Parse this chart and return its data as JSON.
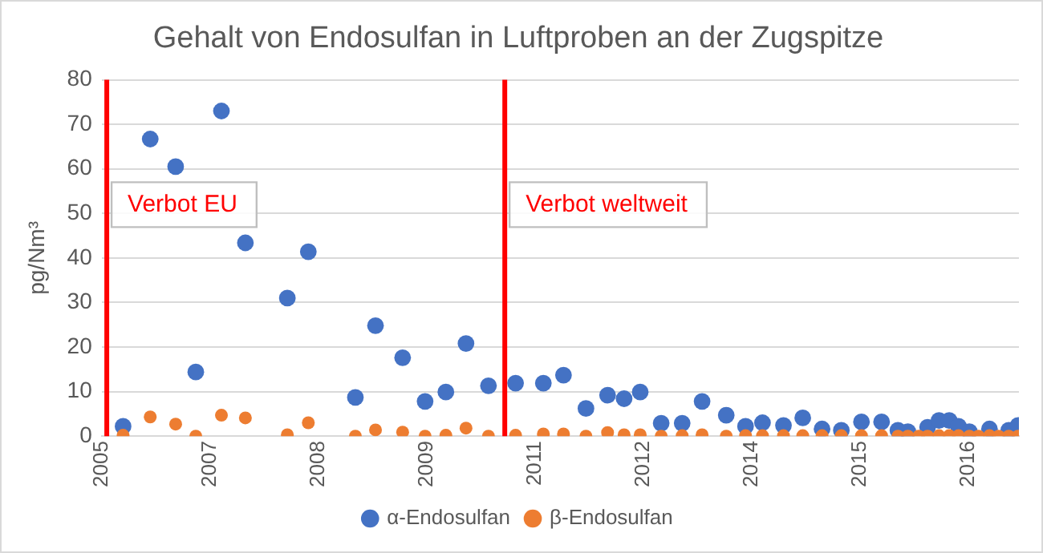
{
  "chart_data": {
    "type": "scatter",
    "title": "Gehalt von Endosulfan in Luftproben an der Zugspitze",
    "ylabel": "pg/Nm³",
    "x": [
      "2005-11-17",
      "2006-03-25",
      "2006-07-23",
      "2006-10-26",
      "2007-02-24",
      "2007-06-17",
      "2008-01-01",
      "2008-04-09",
      "2008-11-17",
      "2009-02-20",
      "2009-06-28",
      "2009-10-12",
      "2010-01-18",
      "2010-04-23",
      "2010-08-07",
      "2010-12-13",
      "2011-04-23",
      "2011-07-27",
      "2011-11-10",
      "2012-02-20",
      "2012-05-08",
      "2012-07-23",
      "2012-10-30",
      "2013-02-06",
      "2013-05-11",
      "2013-09-02",
      "2013-12-02",
      "2014-02-20",
      "2014-05-30",
      "2014-08-29",
      "2014-11-28",
      "2015-02-27",
      "2015-06-02",
      "2015-09-05",
      "2015-11-21",
      "2016-01-07",
      "2016-02-27",
      "2016-04-09",
      "2016-06-02",
      "2016-07-20",
      "2016-09-02",
      "2016-10-23",
      "2016-12-05",
      "2017-01-26",
      "2017-03-10",
      "2017-04-27",
      "2017-06-10"
    ],
    "series": [
      {
        "name": "α-Endosulfan",
        "color": "#4472c4",
        "values": [
          2.2,
          66.7,
          60.5,
          14.4,
          73,
          43.4,
          31,
          41.4,
          8.7,
          24.8,
          17.6,
          7.8,
          9.9,
          20.8,
          11.3,
          11.9,
          11.9,
          13.7,
          6.2,
          9.2,
          8.4,
          9.9,
          2.9,
          2.9,
          7.8,
          4.7,
          2.2,
          3.0,
          2.4,
          4.1,
          1.6,
          1.3,
          3.2,
          3.2,
          1.3,
          1.0,
          null,
          2.0,
          3.5,
          3.5,
          2.2,
          1.0,
          null,
          1.6,
          null,
          1.3,
          2.4
        ]
      },
      {
        "name": "β-Endosulfan",
        "color": "#ed7d31",
        "values": [
          0.2,
          4.3,
          2.7,
          0,
          4.7,
          4.1,
          0.3,
          3.0,
          0,
          1.4,
          0.9,
          0,
          0.2,
          1.8,
          0,
          0.2,
          0.5,
          0.5,
          0,
          0.8,
          0.3,
          0.3,
          0,
          0.1,
          0.3,
          0,
          0.1,
          0.1,
          0.1,
          0.1,
          0.1,
          0.1,
          0.1,
          0.1,
          0,
          0,
          0,
          0,
          0.1,
          0.1,
          0.1,
          0,
          0,
          0.1,
          0,
          0,
          0
        ]
      }
    ],
    "xlim": [
      "2005-08-08",
      "2017-06-14"
    ],
    "xticks": [
      {
        "value": "2005-08-08",
        "label": "2005"
      },
      {
        "value": "2007-01-01",
        "label": "2007"
      },
      {
        "value": "2008-05-26",
        "label": "2008"
      },
      {
        "value": "2009-10-19",
        "label": "2009"
      },
      {
        "value": "2011-03-14",
        "label": "2011"
      },
      {
        "value": "2012-08-07",
        "label": "2012"
      },
      {
        "value": "2014-01-01",
        "label": "2014"
      },
      {
        "value": "2015-05-27",
        "label": "2015"
      },
      {
        "value": "2016-10-19",
        "label": "2016"
      }
    ],
    "ylim": [
      0,
      80
    ],
    "yticks": [
      0,
      10,
      20,
      30,
      40,
      50,
      60,
      70,
      80
    ],
    "ref_lines": [
      {
        "axis": "x",
        "value": "2005-09-01",
        "label": "Verbot EU",
        "color": "#ff0000"
      },
      {
        "axis": "x",
        "value": "2010-10-23",
        "label": "Verbot weltweit",
        "color": "#ff0000"
      }
    ],
    "grid": "y",
    "legend": "bottom",
    "marker": "circle"
  }
}
